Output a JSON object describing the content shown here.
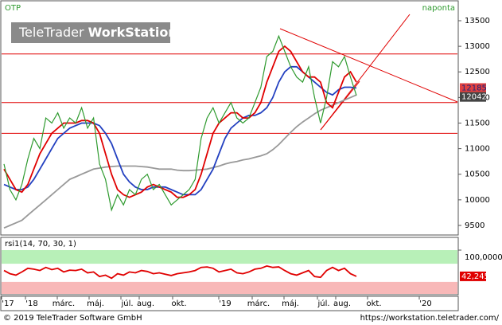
{
  "chart_data": {
    "type": "line",
    "symbol": "OTP",
    "interval": "naponta",
    "watermark": [
      "TeleTrader ",
      "WorkStation"
    ],
    "ylim": [
      9313,
      13858
    ],
    "yticks": [
      9500,
      10000,
      10500,
      11000,
      11500,
      12000,
      12500,
      13000,
      13500
    ],
    "levels": [
      12850,
      11900,
      11300
    ],
    "series": [
      {
        "color": "#2e9a2e",
        "values": [
          10700,
          10200,
          10000,
          10300,
          10800,
          11200,
          11000,
          11600,
          11500,
          11700,
          11400,
          11600,
          11500,
          11800,
          11400,
          11600,
          10700,
          10400,
          9800,
          10100,
          9900,
          10200,
          10100,
          10400,
          10500,
          10200,
          10300,
          10100,
          9900,
          10000,
          10100,
          10200,
          10400,
          11200,
          11600,
          11800,
          11500,
          11700,
          11900,
          11600,
          11500,
          11600,
          11900,
          12200,
          12800,
          12900,
          13200,
          12900,
          12600,
          12400,
          12300,
          12600,
          12000,
          11500,
          12000,
          12700,
          12600,
          12800,
          12400,
          12042
        ],
        "value_labels": {
          "59": "12042"
        }
      },
      {
        "color": "#e00000",
        "values": [
          10600,
          10400,
          10200,
          10150,
          10300,
          10600,
          10900,
          11100,
          11300,
          11400,
          11500,
          11500,
          11500,
          11550,
          11550,
          11500,
          11300,
          10900,
          10500,
          10200,
          10100,
          10050,
          10100,
          10150,
          10250,
          10300,
          10250,
          10200,
          10150,
          10050,
          10050,
          10100,
          10200,
          10500,
          10900,
          11300,
          11500,
          11600,
          11700,
          11700,
          11600,
          11600,
          11700,
          11900,
          12300,
          12600,
          12900,
          13000,
          12900,
          12700,
          12500,
          12400,
          12400,
          12300,
          11900,
          11800,
          12100,
          12400,
          12500,
          12300
        ]
      },
      {
        "color": "#2340c0",
        "values": [
          10300,
          10250,
          10200,
          10200,
          10250,
          10400,
          10600,
          10800,
          11000,
          11200,
          11300,
          11400,
          11450,
          11500,
          11500,
          11500,
          11450,
          11300,
          11100,
          10800,
          10500,
          10350,
          10250,
          10200,
          10200,
          10250,
          10250,
          10250,
          10200,
          10150,
          10100,
          10100,
          10100,
          10200,
          10400,
          10600,
          10900,
          11200,
          11400,
          11500,
          11600,
          11650,
          11650,
          11700,
          11800,
          12000,
          12300,
          12500,
          12600,
          12600,
          12500,
          12400,
          12300,
          12200,
          12100,
          12050,
          12150,
          12200,
          12200,
          12185
        ],
        "value_labels": {
          "59": "12185"
        }
      },
      {
        "color": "#999999",
        "values": [
          9450,
          9500,
          9550,
          9600,
          9700,
          9800,
          9900,
          10000,
          10100,
          10200,
          10300,
          10400,
          10450,
          10500,
          10550,
          10600,
          10620,
          10640,
          10650,
          10660,
          10660,
          10660,
          10660,
          10650,
          10640,
          10620,
          10600,
          10600,
          10600,
          10580,
          10570,
          10570,
          10580,
          10590,
          10600,
          10630,
          10660,
          10700,
          10730,
          10750,
          10780,
          10800,
          10830,
          10860,
          10900,
          10980,
          11080,
          11200,
          11320,
          11430,
          11520,
          11600,
          11680,
          11750,
          11800,
          11850,
          11900,
          11950,
          12000,
          12050
        ]
      }
    ],
    "rsi": {
      "title": "rsi1(14, 70, 30, 1)",
      "upper": 70,
      "lower": 30,
      "ylim": [
        0,
        100
      ],
      "yticks": [
        {
          "value": 100,
          "label": "100,0000"
        }
      ],
      "color": "#e00000",
      "values": [
        55,
        48,
        45,
        52,
        60,
        58,
        55,
        62,
        57,
        60,
        52,
        56,
        55,
        58,
        50,
        52,
        42,
        45,
        38,
        48,
        45,
        52,
        50,
        55,
        53,
        48,
        50,
        47,
        44,
        48,
        50,
        52,
        55,
        62,
        63,
        60,
        52,
        55,
        58,
        50,
        48,
        52,
        58,
        60,
        65,
        62,
        63,
        55,
        48,
        45,
        50,
        55,
        42,
        40,
        55,
        62,
        55,
        60,
        48,
        42.2455
      ],
      "value_labels": {
        "59": "42,2455"
      }
    },
    "xaxis_labels": [
      "'17",
      "'18",
      "márc.",
      "máj.",
      "júl.",
      "aug.",
      "okt.",
      "'19",
      "márc.",
      "máj.",
      "júl.",
      "aug.",
      "okt.",
      "'20"
    ],
    "footer_left": "© 2019 TeleTrader Software GmbH",
    "footer_right": "https://workstation.teletrader.com/"
  }
}
